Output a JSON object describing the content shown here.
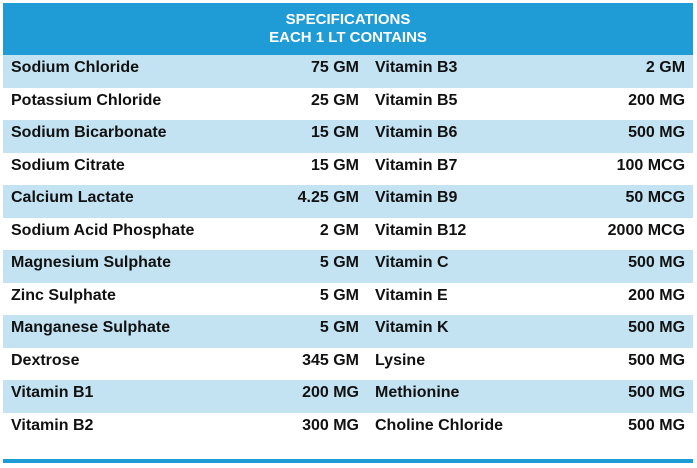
{
  "header": {
    "line1": "SPECIFICATIONS",
    "line2": "EACH 1 LT CONTAINS"
  },
  "colors": {
    "header_bg": "#1f9bd6",
    "alt_row_bg": "#c3e3f3",
    "header_text": "#ffffff"
  },
  "rows": [
    {
      "left_name": "Sodium Chloride",
      "left_amount": "75 GM",
      "right_name": "Vitamin B3",
      "right_amount": "2 GM"
    },
    {
      "left_name": "Potassium Chloride",
      "left_amount": "25 GM",
      "right_name": "Vitamin B5",
      "right_amount": "200 MG"
    },
    {
      "left_name": "Sodium Bicarbonate",
      "left_amount": "15 GM",
      "right_name": "Vitamin B6",
      "right_amount": "500 MG"
    },
    {
      "left_name": "Sodium Citrate",
      "left_amount": "15 GM",
      "right_name": "Vitamin B7",
      "right_amount": "100 MCG"
    },
    {
      "left_name": "Calcium Lactate",
      "left_amount": "4.25 GM",
      "right_name": "Vitamin B9",
      "right_amount": "50 MCG"
    },
    {
      "left_name": "Sodium Acid Phosphate",
      "left_amount": "2 GM",
      "right_name": "Vitamin B12",
      "right_amount": "2000 MCG"
    },
    {
      "left_name": "Magnesium Sulphate",
      "left_amount": "5 GM",
      "right_name": "Vitamin C",
      "right_amount": "500 MG"
    },
    {
      "left_name": "Zinc Sulphate",
      "left_amount": "5 GM",
      "right_name": "Vitamin E",
      "right_amount": "200 MG"
    },
    {
      "left_name": "Manganese Sulphate",
      "left_amount": "5 GM",
      "right_name": "Vitamin K",
      "right_amount": "500 MG"
    },
    {
      "left_name": "Dextrose",
      "left_amount": "345 GM",
      "right_name": "Lysine",
      "right_amount": "500 MG"
    },
    {
      "left_name": "Vitamin B1",
      "left_amount": "200 MG",
      "right_name": "Methionine",
      "right_amount": "500 MG"
    },
    {
      "left_name": "Vitamin B2",
      "left_amount": "300 MG",
      "right_name": "Choline Chloride",
      "right_amount": "500 MG"
    }
  ]
}
